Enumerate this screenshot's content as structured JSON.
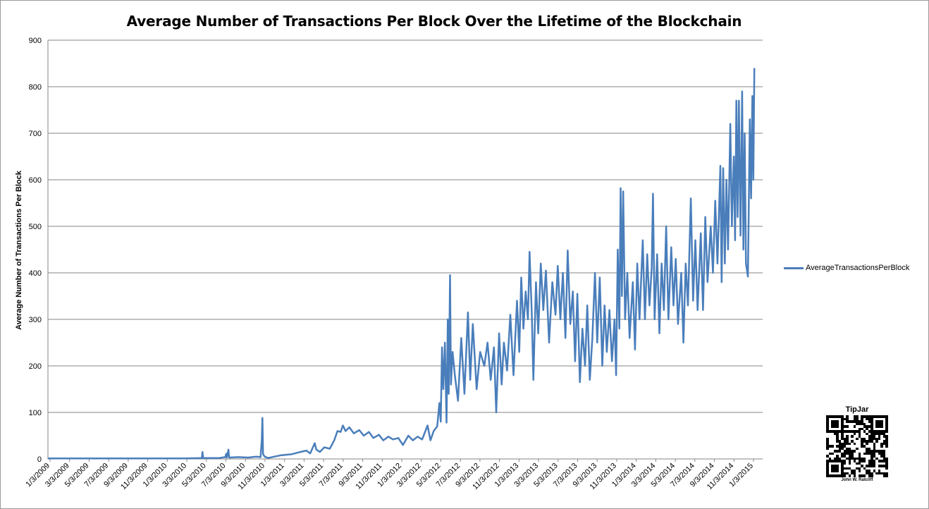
{
  "title": "Average Number of Transactions Per Block Over the Lifetime of the Blockchain",
  "chart_data": {
    "type": "line",
    "title": "Average Number of Transactions Per Block Over the Lifetime of the Blockchain",
    "xlabel": "",
    "ylabel": "Average Number of Transactions  Per Block",
    "ylim": [
      0,
      900
    ],
    "yticks": [
      0,
      100,
      200,
      300,
      400,
      500,
      600,
      700,
      800,
      900
    ],
    "xlim": [
      "2009-01-03",
      "2015-02-10"
    ],
    "xtick_labels": [
      "1/3/2009",
      "3/3/2009",
      "5/3/2009",
      "7/3/2009",
      "9/3/2009",
      "11/3/2009",
      "1/3/2010",
      "3/3/2010",
      "5/3/2010",
      "7/3/2010",
      "9/3/2010",
      "11/3/2010",
      "1/3/2011",
      "3/3/2011",
      "5/3/2011",
      "7/3/2011",
      "9/3/2011",
      "11/3/2011",
      "1/3/2012",
      "3/3/2012",
      "5/3/2012",
      "7/3/2012",
      "9/3/2012",
      "11/3/2012",
      "1/3/2013",
      "3/3/2013",
      "5/3/2013",
      "7/3/2013",
      "9/3/2013",
      "11/3/2013",
      "1/3/2014",
      "3/3/2014",
      "5/3/2014",
      "7/3/2014",
      "9/3/2014",
      "11/3/2014",
      "1/3/2015"
    ],
    "grid": true,
    "legend_position": "right",
    "series": [
      {
        "name": "AverageTransactionsPerBlock",
        "color": "#4a7ebb",
        "points": [
          [
            "2009-01-03",
            1
          ],
          [
            "2009-03-01",
            1
          ],
          [
            "2009-06-01",
            1
          ],
          [
            "2009-09-01",
            1
          ],
          [
            "2009-12-01",
            1
          ],
          [
            "2010-03-01",
            1
          ],
          [
            "2010-04-28",
            2
          ],
          [
            "2010-04-30",
            15
          ],
          [
            "2010-05-02",
            2
          ],
          [
            "2010-06-20",
            2
          ],
          [
            "2010-07-10",
            4
          ],
          [
            "2010-07-13",
            11
          ],
          [
            "2010-07-15",
            3
          ],
          [
            "2010-07-20",
            20
          ],
          [
            "2010-07-22",
            3
          ],
          [
            "2010-08-20",
            4
          ],
          [
            "2010-09-20",
            3
          ],
          [
            "2010-10-15",
            5
          ],
          [
            "2010-10-28",
            4
          ],
          [
            "2010-11-01",
            40
          ],
          [
            "2010-11-03",
            88
          ],
          [
            "2010-11-05",
            10
          ],
          [
            "2010-11-10",
            5
          ],
          [
            "2010-11-20",
            2
          ],
          [
            "2010-12-10",
            5
          ],
          [
            "2011-01-01",
            8
          ],
          [
            "2011-02-01",
            10
          ],
          [
            "2011-03-01",
            15
          ],
          [
            "2011-03-20",
            18
          ],
          [
            "2011-04-01",
            12
          ],
          [
            "2011-04-15",
            34
          ],
          [
            "2011-04-20",
            20
          ],
          [
            "2011-05-01",
            15
          ],
          [
            "2011-05-15",
            25
          ],
          [
            "2011-06-01",
            22
          ],
          [
            "2011-06-15",
            40
          ],
          [
            "2011-06-25",
            60
          ],
          [
            "2011-07-05",
            58
          ],
          [
            "2011-07-12",
            72
          ],
          [
            "2011-07-20",
            60
          ],
          [
            "2011-08-01",
            68
          ],
          [
            "2011-08-15",
            55
          ],
          [
            "2011-09-01",
            62
          ],
          [
            "2011-09-15",
            50
          ],
          [
            "2011-10-01",
            58
          ],
          [
            "2011-10-15",
            45
          ],
          [
            "2011-11-01",
            52
          ],
          [
            "2011-11-15",
            40
          ],
          [
            "2011-12-01",
            48
          ],
          [
            "2011-12-15",
            42
          ],
          [
            "2012-01-01",
            45
          ],
          [
            "2012-01-15",
            30
          ],
          [
            "2012-02-01",
            50
          ],
          [
            "2012-02-15",
            40
          ],
          [
            "2012-03-01",
            48
          ],
          [
            "2012-03-15",
            42
          ],
          [
            "2012-04-01",
            72
          ],
          [
            "2012-04-10",
            40
          ],
          [
            "2012-04-20",
            60
          ],
          [
            "2012-05-01",
            70
          ],
          [
            "2012-05-08",
            120
          ],
          [
            "2012-05-12",
            80
          ],
          [
            "2012-05-16",
            240
          ],
          [
            "2012-05-20",
            150
          ],
          [
            "2012-05-25",
            250
          ],
          [
            "2012-05-30",
            78
          ],
          [
            "2012-06-03",
            300
          ],
          [
            "2012-06-06",
            140
          ],
          [
            "2012-06-10",
            395
          ],
          [
            "2012-06-13",
            160
          ],
          [
            "2012-06-18",
            230
          ],
          [
            "2012-06-25",
            180
          ],
          [
            "2012-07-05",
            125
          ],
          [
            "2012-07-15",
            260
          ],
          [
            "2012-07-25",
            140
          ],
          [
            "2012-08-05",
            315
          ],
          [
            "2012-08-12",
            170
          ],
          [
            "2012-08-20",
            290
          ],
          [
            "2012-09-01",
            150
          ],
          [
            "2012-09-12",
            230
          ],
          [
            "2012-09-25",
            200
          ],
          [
            "2012-10-05",
            250
          ],
          [
            "2012-10-15",
            170
          ],
          [
            "2012-10-25",
            240
          ],
          [
            "2012-11-01",
            100
          ],
          [
            "2012-11-10",
            270
          ],
          [
            "2012-11-18",
            160
          ],
          [
            "2012-11-25",
            250
          ],
          [
            "2012-12-05",
            190
          ],
          [
            "2012-12-15",
            310
          ],
          [
            "2012-12-25",
            180
          ],
          [
            "2013-01-05",
            340
          ],
          [
            "2013-01-12",
            230
          ],
          [
            "2013-01-18",
            390
          ],
          [
            "2013-01-25",
            280
          ],
          [
            "2013-02-01",
            360
          ],
          [
            "2013-02-08",
            300
          ],
          [
            "2013-02-13",
            445
          ],
          [
            "2013-02-20",
            310
          ],
          [
            "2013-02-25",
            170
          ],
          [
            "2013-03-05",
            380
          ],
          [
            "2013-03-12",
            270
          ],
          [
            "2013-03-20",
            420
          ],
          [
            "2013-03-28",
            320
          ],
          [
            "2013-04-05",
            405
          ],
          [
            "2013-04-15",
            250
          ],
          [
            "2013-04-25",
            380
          ],
          [
            "2013-05-05",
            310
          ],
          [
            "2013-05-12",
            415
          ],
          [
            "2013-05-20",
            300
          ],
          [
            "2013-05-28",
            400
          ],
          [
            "2013-06-05",
            260
          ],
          [
            "2013-06-12",
            448
          ],
          [
            "2013-06-20",
            290
          ],
          [
            "2013-06-28",
            360
          ],
          [
            "2013-07-05",
            210
          ],
          [
            "2013-07-12",
            355
          ],
          [
            "2013-07-20",
            165
          ],
          [
            "2013-07-28",
            280
          ],
          [
            "2013-08-05",
            200
          ],
          [
            "2013-08-12",
            330
          ],
          [
            "2013-08-20",
            170
          ],
          [
            "2013-08-28",
            260
          ],
          [
            "2013-09-05",
            400
          ],
          [
            "2013-09-12",
            250
          ],
          [
            "2013-09-20",
            390
          ],
          [
            "2013-09-28",
            200
          ],
          [
            "2013-10-05",
            330
          ],
          [
            "2013-10-12",
            230
          ],
          [
            "2013-10-20",
            320
          ],
          [
            "2013-10-28",
            210
          ],
          [
            "2013-11-05",
            300
          ],
          [
            "2013-11-10",
            180
          ],
          [
            "2013-11-15",
            450
          ],
          [
            "2013-11-20",
            280
          ],
          [
            "2013-11-24",
            582
          ],
          [
            "2013-11-28",
            350
          ],
          [
            "2013-12-02",
            575
          ],
          [
            "2013-12-08",
            300
          ],
          [
            "2013-12-15",
            400
          ],
          [
            "2013-12-22",
            260
          ],
          [
            "2014-01-01",
            380
          ],
          [
            "2014-01-08",
            235
          ],
          [
            "2014-01-15",
            420
          ],
          [
            "2014-01-22",
            300
          ],
          [
            "2014-02-01",
            470
          ],
          [
            "2014-02-08",
            300
          ],
          [
            "2014-02-15",
            440
          ],
          [
            "2014-02-22",
            330
          ],
          [
            "2014-03-01",
            410
          ],
          [
            "2014-03-05",
            570
          ],
          [
            "2014-03-10",
            300
          ],
          [
            "2014-03-18",
            440
          ],
          [
            "2014-03-25",
            270
          ],
          [
            "2014-04-01",
            420
          ],
          [
            "2014-04-08",
            320
          ],
          [
            "2014-04-15",
            500
          ],
          [
            "2014-04-22",
            300
          ],
          [
            "2014-05-01",
            455
          ],
          [
            "2014-05-08",
            330
          ],
          [
            "2014-05-15",
            430
          ],
          [
            "2014-05-22",
            290
          ],
          [
            "2014-06-01",
            400
          ],
          [
            "2014-06-08",
            250
          ],
          [
            "2014-06-15",
            420
          ],
          [
            "2014-06-22",
            330
          ],
          [
            "2014-07-01",
            560
          ],
          [
            "2014-07-08",
            340
          ],
          [
            "2014-07-15",
            470
          ],
          [
            "2014-07-22",
            320
          ],
          [
            "2014-08-01",
            485
          ],
          [
            "2014-08-08",
            320
          ],
          [
            "2014-08-15",
            520
          ],
          [
            "2014-08-22",
            380
          ],
          [
            "2014-09-01",
            500
          ],
          [
            "2014-09-08",
            400
          ],
          [
            "2014-09-15",
            555
          ],
          [
            "2014-09-22",
            420
          ],
          [
            "2014-10-01",
            630
          ],
          [
            "2014-10-05",
            380
          ],
          [
            "2014-10-10",
            625
          ],
          [
            "2014-10-15",
            420
          ],
          [
            "2014-10-20",
            600
          ],
          [
            "2014-10-25",
            450
          ],
          [
            "2014-11-01",
            720
          ],
          [
            "2014-11-06",
            500
          ],
          [
            "2014-11-12",
            650
          ],
          [
            "2014-11-16",
            470
          ],
          [
            "2014-11-20",
            770
          ],
          [
            "2014-11-24",
            520
          ],
          [
            "2014-11-28",
            770
          ],
          [
            "2014-12-03",
            480
          ],
          [
            "2014-12-08",
            790
          ],
          [
            "2014-12-12",
            450
          ],
          [
            "2014-12-16",
            700
          ],
          [
            "2014-12-20",
            420
          ],
          [
            "2014-12-26",
            392
          ],
          [
            "2015-01-01",
            730
          ],
          [
            "2015-01-05",
            560
          ],
          [
            "2015-01-09",
            780
          ],
          [
            "2015-01-12",
            600
          ],
          [
            "2015-01-15",
            840
          ]
        ]
      }
    ]
  },
  "tipjar": {
    "title": "TipJar",
    "author": "John W. Ratcliff"
  }
}
